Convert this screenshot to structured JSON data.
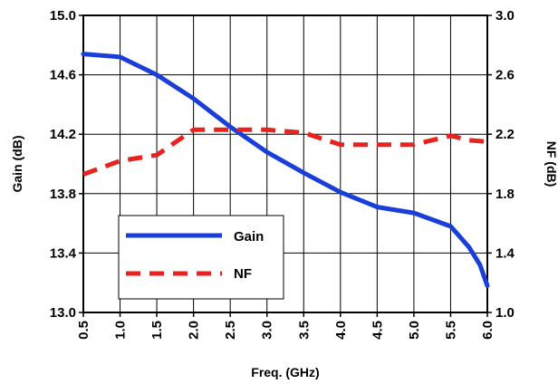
{
  "chart_data": {
    "type": "line",
    "title": "",
    "xlabel": "Freq. (GHz)",
    "ylabel": "Gain (dB)",
    "y2label": "NF (dB)",
    "xlim": [
      0.5,
      6.0
    ],
    "ylim": [
      13.0,
      15.0
    ],
    "y2lim": [
      1.0,
      3.0
    ],
    "grid": true,
    "legend_position": "bottom-left",
    "x_ticks": [
      "0.5",
      "1.0",
      "1.5",
      "2.0",
      "2.5",
      "3.0",
      "3.5",
      "4.0",
      "4.5",
      "5.0",
      "5.5",
      "6.0"
    ],
    "y_ticks": [
      "15.0",
      "14.6",
      "14.2",
      "13.8",
      "13.4",
      "13.0"
    ],
    "y2_ticks": [
      "3.0",
      "2.6",
      "2.2",
      "1.8",
      "1.4",
      "1.0"
    ],
    "series": [
      {
        "name": "Gain",
        "axis": "left",
        "style": "solid",
        "color": "#1a3fd9",
        "x": [
          0.5,
          1.0,
          1.5,
          2.0,
          2.5,
          3.0,
          3.5,
          4.0,
          4.5,
          5.0,
          5.5,
          5.75,
          5.9,
          6.0
        ],
        "y": [
          14.74,
          14.72,
          14.6,
          14.44,
          14.25,
          14.08,
          13.94,
          13.81,
          13.71,
          13.67,
          13.58,
          13.44,
          13.32,
          13.18
        ]
      },
      {
        "name": "NF",
        "axis": "right",
        "style": "dashed",
        "color": "#e8231f",
        "x": [
          0.5,
          1.0,
          1.25,
          1.5,
          2.0,
          2.5,
          3.0,
          3.5,
          4.0,
          4.5,
          5.0,
          5.5,
          5.75,
          6.0
        ],
        "y": [
          1.93,
          2.02,
          2.04,
          2.06,
          2.23,
          2.23,
          2.23,
          2.21,
          2.13,
          2.13,
          2.13,
          2.19,
          2.16,
          2.15
        ]
      }
    ]
  }
}
